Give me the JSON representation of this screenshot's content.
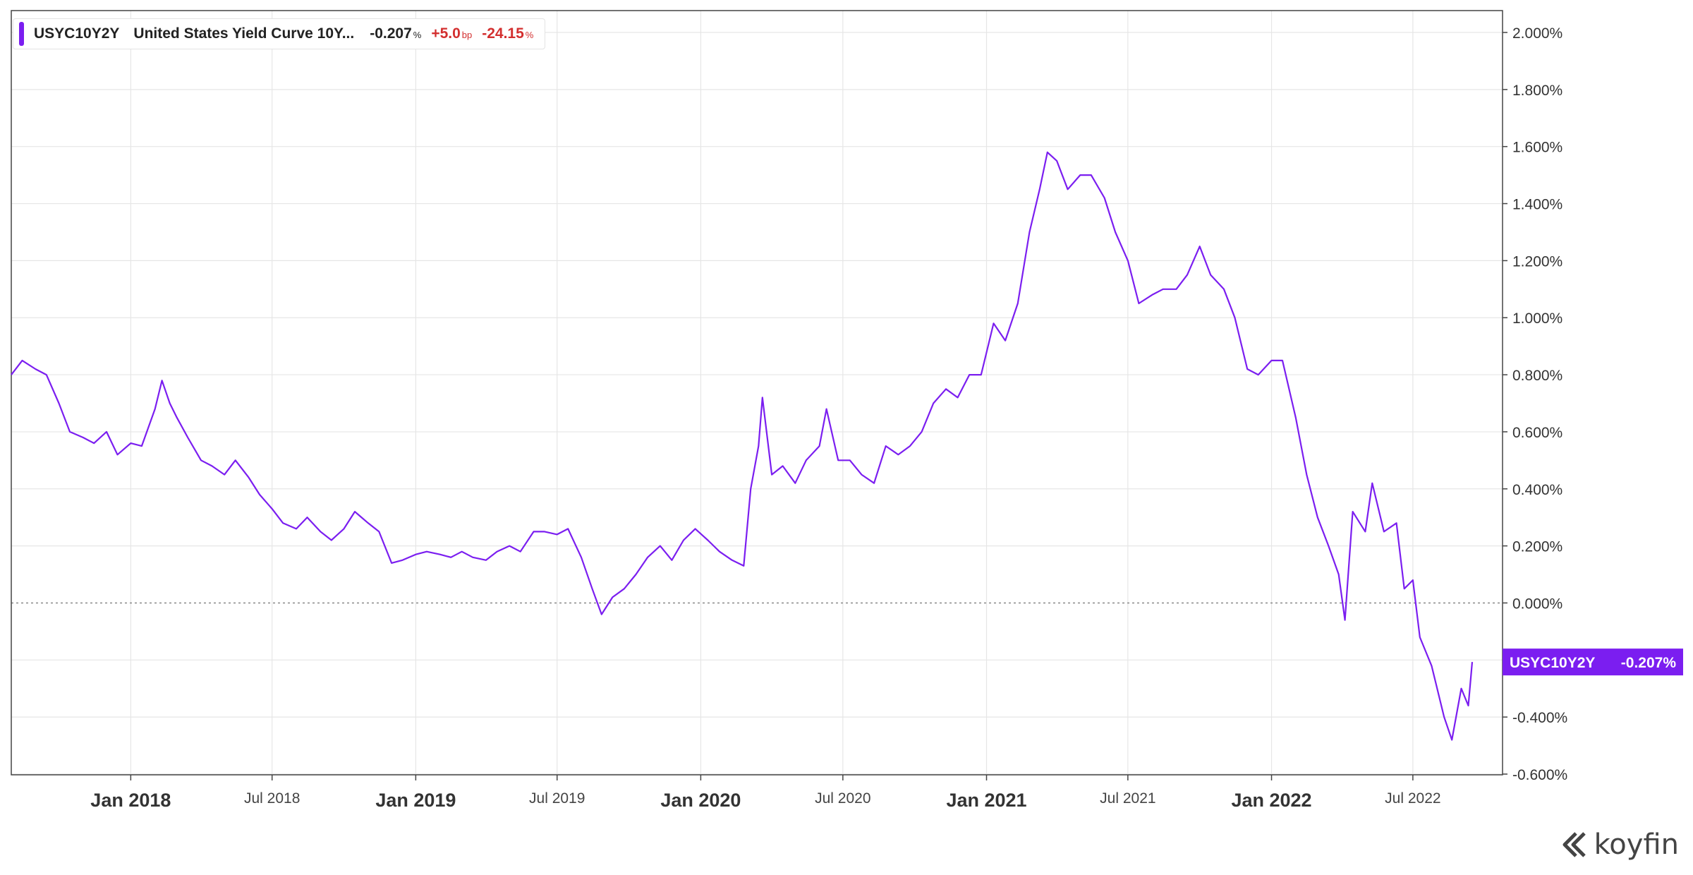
{
  "legend": {
    "ticker": "USYC10Y2Y",
    "name": "United States Yield Curve 10Y...",
    "value": "-0.207",
    "value_unit": "%",
    "change": "+5.0",
    "change_unit": "bp",
    "pct_change": "-24.15",
    "pct_unit": "%"
  },
  "last_value_label": {
    "ticker": "USYC10Y2Y",
    "value": "-0.207%"
  },
  "brand": "koyfin",
  "colors": {
    "series": "#7b1ef0",
    "negative": "#d32f2f",
    "grid": "#e6e6e6",
    "axis": "#444444"
  },
  "chart_data": {
    "type": "line",
    "title": "",
    "xlabel": "",
    "ylabel": "",
    "ylim": [
      -0.6,
      2.0
    ],
    "y_axis_side": "right",
    "y_ticks": [
      "2.000%",
      "1.800%",
      "1.600%",
      "1.400%",
      "1.200%",
      "1.000%",
      "0.800%",
      "0.600%",
      "0.400%",
      "0.200%",
      "0.000%",
      "",
      "-0.400%",
      "-0.600%"
    ],
    "x_ticks": [
      {
        "label": "Jan 2018",
        "major": true
      },
      {
        "label": "Jul 2018",
        "major": false
      },
      {
        "label": "Jan 2019",
        "major": true
      },
      {
        "label": "Jul 2019",
        "major": false
      },
      {
        "label": "Jan 2020",
        "major": true
      },
      {
        "label": "Jul 2020",
        "major": false
      },
      {
        "label": "Jan 2021",
        "major": true
      },
      {
        "label": "Jul 2021",
        "major": false
      },
      {
        "label": "Jan 2022",
        "major": true
      },
      {
        "label": "Jul 2022",
        "major": false
      }
    ],
    "grid": true,
    "zero_line": "dotted",
    "series": [
      {
        "name": "USYC10Y2Y",
        "points": [
          [
            "2017-08-01",
            0.8
          ],
          [
            "2017-08-15",
            0.85
          ],
          [
            "2017-09-01",
            0.82
          ],
          [
            "2017-09-15",
            0.8
          ],
          [
            "2017-10-01",
            0.7
          ],
          [
            "2017-10-15",
            0.6
          ],
          [
            "2017-11-01",
            0.58
          ],
          [
            "2017-11-15",
            0.56
          ],
          [
            "2017-12-01",
            0.6
          ],
          [
            "2017-12-15",
            0.52
          ],
          [
            "2018-01-01",
            0.56
          ],
          [
            "2018-01-15",
            0.55
          ],
          [
            "2018-02-01",
            0.68
          ],
          [
            "2018-02-10",
            0.78
          ],
          [
            "2018-02-20",
            0.7
          ],
          [
            "2018-03-01",
            0.65
          ],
          [
            "2018-03-15",
            0.58
          ],
          [
            "2018-04-01",
            0.5
          ],
          [
            "2018-04-15",
            0.48
          ],
          [
            "2018-05-01",
            0.45
          ],
          [
            "2018-05-15",
            0.5
          ],
          [
            "2018-06-01",
            0.44
          ],
          [
            "2018-06-15",
            0.38
          ],
          [
            "2018-07-01",
            0.33
          ],
          [
            "2018-07-15",
            0.28
          ],
          [
            "2018-08-01",
            0.26
          ],
          [
            "2018-08-15",
            0.3
          ],
          [
            "2018-09-01",
            0.25
          ],
          [
            "2018-09-15",
            0.22
          ],
          [
            "2018-10-01",
            0.26
          ],
          [
            "2018-10-15",
            0.32
          ],
          [
            "2018-11-01",
            0.28
          ],
          [
            "2018-11-15",
            0.25
          ],
          [
            "2018-12-01",
            0.14
          ],
          [
            "2018-12-15",
            0.15
          ],
          [
            "2019-01-01",
            0.17
          ],
          [
            "2019-01-15",
            0.18
          ],
          [
            "2019-02-01",
            0.17
          ],
          [
            "2019-02-15",
            0.16
          ],
          [
            "2019-03-01",
            0.18
          ],
          [
            "2019-03-15",
            0.16
          ],
          [
            "2019-04-01",
            0.15
          ],
          [
            "2019-04-15",
            0.18
          ],
          [
            "2019-05-01",
            0.2
          ],
          [
            "2019-05-15",
            0.18
          ],
          [
            "2019-06-01",
            0.25
          ],
          [
            "2019-06-15",
            0.25
          ],
          [
            "2019-07-01",
            0.24
          ],
          [
            "2019-07-15",
            0.26
          ],
          [
            "2019-08-01",
            0.16
          ],
          [
            "2019-08-15",
            0.05
          ],
          [
            "2019-08-27",
            -0.04
          ],
          [
            "2019-09-10",
            0.02
          ],
          [
            "2019-09-25",
            0.05
          ],
          [
            "2019-10-10",
            0.1
          ],
          [
            "2019-10-25",
            0.16
          ],
          [
            "2019-11-10",
            0.2
          ],
          [
            "2019-11-25",
            0.15
          ],
          [
            "2019-12-10",
            0.22
          ],
          [
            "2019-12-25",
            0.26
          ],
          [
            "2020-01-10",
            0.22
          ],
          [
            "2020-01-25",
            0.18
          ],
          [
            "2020-02-10",
            0.15
          ],
          [
            "2020-02-25",
            0.13
          ],
          [
            "2020-03-05",
            0.4
          ],
          [
            "2020-03-15",
            0.55
          ],
          [
            "2020-03-20",
            0.72
          ],
          [
            "2020-04-01",
            0.45
          ],
          [
            "2020-04-15",
            0.48
          ],
          [
            "2020-05-01",
            0.42
          ],
          [
            "2020-05-15",
            0.5
          ],
          [
            "2020-06-01",
            0.55
          ],
          [
            "2020-06-10",
            0.68
          ],
          [
            "2020-06-25",
            0.5
          ],
          [
            "2020-07-10",
            0.5
          ],
          [
            "2020-07-25",
            0.45
          ],
          [
            "2020-08-10",
            0.42
          ],
          [
            "2020-08-25",
            0.55
          ],
          [
            "2020-09-10",
            0.52
          ],
          [
            "2020-09-25",
            0.55
          ],
          [
            "2020-10-10",
            0.6
          ],
          [
            "2020-10-25",
            0.7
          ],
          [
            "2020-11-10",
            0.75
          ],
          [
            "2020-11-25",
            0.72
          ],
          [
            "2020-12-10",
            0.8
          ],
          [
            "2020-12-25",
            0.8
          ],
          [
            "2021-01-10",
            0.98
          ],
          [
            "2021-01-25",
            0.92
          ],
          [
            "2021-02-10",
            1.05
          ],
          [
            "2021-02-25",
            1.3
          ],
          [
            "2021-03-10",
            1.45
          ],
          [
            "2021-03-20",
            1.58
          ],
          [
            "2021-04-01",
            1.55
          ],
          [
            "2021-04-15",
            1.45
          ],
          [
            "2021-05-01",
            1.5
          ],
          [
            "2021-05-15",
            1.5
          ],
          [
            "2021-06-01",
            1.42
          ],
          [
            "2021-06-15",
            1.3
          ],
          [
            "2021-07-01",
            1.2
          ],
          [
            "2021-07-15",
            1.05
          ],
          [
            "2021-08-01",
            1.08
          ],
          [
            "2021-08-15",
            1.1
          ],
          [
            "2021-09-01",
            1.1
          ],
          [
            "2021-09-15",
            1.15
          ],
          [
            "2021-10-01",
            1.25
          ],
          [
            "2021-10-15",
            1.15
          ],
          [
            "2021-11-01",
            1.1
          ],
          [
            "2021-11-15",
            1.0
          ],
          [
            "2021-12-01",
            0.82
          ],
          [
            "2021-12-15",
            0.8
          ],
          [
            "2022-01-01",
            0.85
          ],
          [
            "2022-01-15",
            0.85
          ],
          [
            "2022-02-01",
            0.65
          ],
          [
            "2022-02-15",
            0.45
          ],
          [
            "2022-03-01",
            0.3
          ],
          [
            "2022-03-15",
            0.2
          ],
          [
            "2022-03-28",
            0.1
          ],
          [
            "2022-04-05",
            -0.06
          ],
          [
            "2022-04-15",
            0.32
          ],
          [
            "2022-05-01",
            0.25
          ],
          [
            "2022-05-10",
            0.42
          ],
          [
            "2022-05-25",
            0.25
          ],
          [
            "2022-06-10",
            0.28
          ],
          [
            "2022-06-20",
            0.05
          ],
          [
            "2022-07-01",
            0.08
          ],
          [
            "2022-07-10",
            -0.12
          ],
          [
            "2022-07-25",
            -0.22
          ],
          [
            "2022-08-10",
            -0.4
          ],
          [
            "2022-08-20",
            -0.48
          ],
          [
            "2022-09-01",
            -0.3
          ],
          [
            "2022-09-10",
            -0.36
          ],
          [
            "2022-09-15",
            -0.207
          ]
        ]
      }
    ]
  }
}
